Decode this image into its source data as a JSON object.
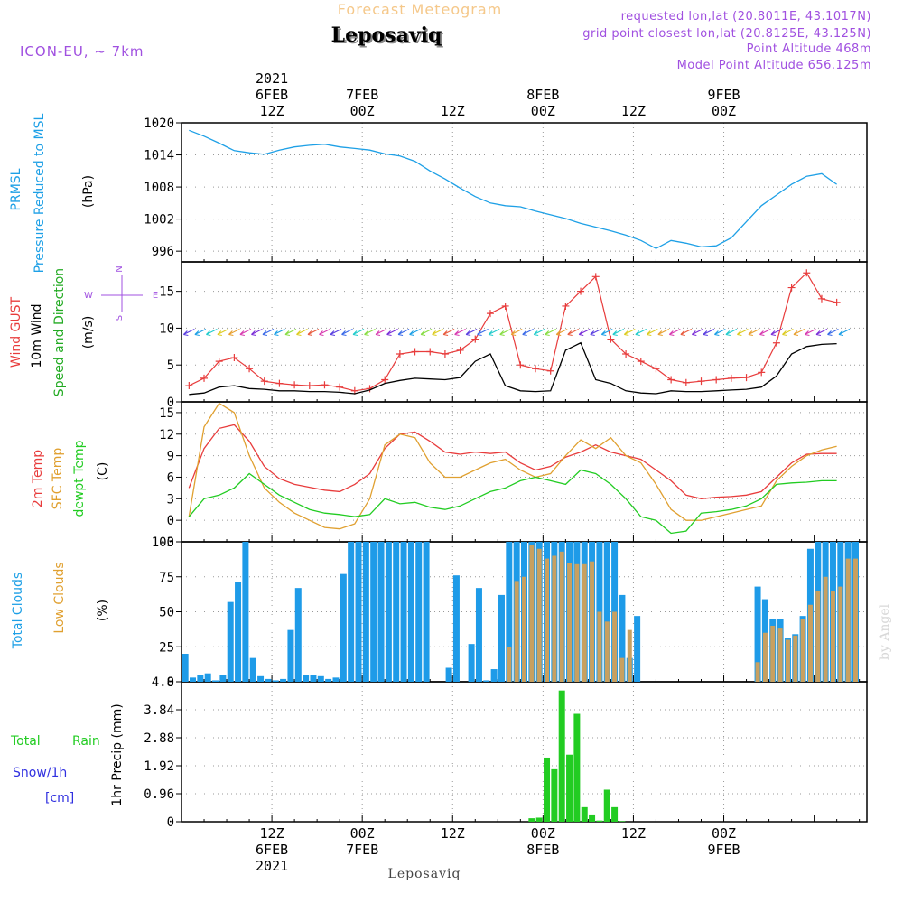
{
  "header": {
    "super_title": "Forecast Meteogram",
    "location": "Leposaviq",
    "model": "ICON-EU, ~ 7km",
    "requested": "requested lon,lat (20.8011E, 43.1017N)",
    "grid_point": "grid point closest lon,lat (20.8125E, 43.125N)",
    "point_altitude": "Point Altitude 468m",
    "model_altitude": "Model Point Altitude 656.125m"
  },
  "time_axis": {
    "top_labels": [
      {
        "t": 12,
        "lines": [
          "2021",
          "6FEB",
          "12Z"
        ]
      },
      {
        "t": 24,
        "lines": [
          "7FEB",
          "00Z"
        ]
      },
      {
        "t": 36,
        "lines": [
          "12Z"
        ]
      },
      {
        "t": 48,
        "lines": [
          "8FEB",
          "00Z"
        ]
      },
      {
        "t": 60,
        "lines": [
          "12Z"
        ]
      },
      {
        "t": 72,
        "lines": [
          "9FEB",
          "00Z"
        ]
      }
    ],
    "bottom_labels": [
      {
        "t": 12,
        "lines": [
          "12Z",
          "6FEB",
          "2021"
        ]
      },
      {
        "t": 24,
        "lines": [
          "00Z",
          "7FEB"
        ]
      },
      {
        "t": 36,
        "lines": [
          "12Z"
        ]
      },
      {
        "t": 48,
        "lines": [
          "00Z",
          "8FEB"
        ]
      },
      {
        "t": 60,
        "lines": [
          "12Z"
        ]
      },
      {
        "t": 72,
        "lines": [
          "00Z",
          "9FEB"
        ]
      }
    ],
    "footer": "Leposaviq",
    "credit": "by Angel"
  },
  "panel_labels": {
    "pressure": {
      "l1": "PRMSL",
      "l2": "Pressure Reduced to MSL",
      "unit": "(hPa)"
    },
    "wind": {
      "l1": "Wind GUST",
      "l2": "10m Wind",
      "l3": "Speed and Direction",
      "unit": "(m/s)",
      "compass_n": "N",
      "compass_s": "S",
      "compass_e": "E",
      "compass_w": "W"
    },
    "temp": {
      "l1": "2m Temp",
      "l2": "SFC Temp",
      "l3": "dewpt Temp",
      "unit": "(C)"
    },
    "clouds": {
      "l1": "Total Clouds",
      "l2": "Low Clouds",
      "unit": "(%)"
    },
    "precip": {
      "l1": "Total",
      "l1b": "Rain",
      "l2": "Snow/1h",
      "l3": "[cm]",
      "unit": "1hr Precip (mm)"
    }
  },
  "colors": {
    "pressure": "#1ea0e6",
    "gust": "#e83c3c",
    "wind": "#000000",
    "t2m": "#e83c3c",
    "sfc": "#e0a030",
    "dew": "#22cc22",
    "total_clouds": "#1e9be8",
    "low_clouds": "#c8a060",
    "rain": "#22cc22",
    "snow": "#3030e0",
    "purple": "#a050e0"
  },
  "chart_data": [
    {
      "type": "line",
      "title": "PRMSL Pressure Reduced to MSL",
      "ylabel": "(hPa)",
      "ylim": [
        994,
        1020
      ],
      "yticks": [
        996,
        1002,
        1008,
        1014,
        1020
      ],
      "x": [
        1,
        3,
        5,
        7,
        9,
        11,
        13,
        15,
        17,
        19,
        21,
        23,
        25,
        27,
        29,
        31,
        33,
        35,
        37,
        39,
        41,
        43,
        45,
        47,
        49,
        51,
        53,
        55,
        57,
        59,
        61,
        63,
        65,
        67,
        69,
        71,
        73,
        75,
        77,
        79,
        81,
        83,
        85,
        87
      ],
      "series": [
        {
          "values": [
            1018.6,
            1017.5,
            1016.2,
            1014.8,
            1014.4,
            1014.1,
            1014.9,
            1015.5,
            1015.8,
            1016.0,
            1015.5,
            1015.2,
            1014.9,
            1014.2,
            1013.8,
            1012.8,
            1011.0,
            1009.5,
            1007.8,
            1006.2,
            1005.0,
            1004.5,
            1004.3,
            1003.5,
            1002.8,
            1002.1,
            1001.2,
            1000.5,
            999.8,
            999.0,
            998.0,
            996.5,
            998.0,
            997.5,
            996.8,
            997.0,
            998.5,
            1001.5,
            1004.5,
            1006.5,
            1008.5,
            1010.0,
            1010.5,
            1008.5
          ]
        }
      ]
    },
    {
      "type": "line",
      "title": "Wind GUST / 10m Wind Speed and Direction",
      "ylabel": "(m/s)",
      "ylim": [
        0,
        19
      ],
      "yticks": [
        0,
        5,
        10,
        15
      ],
      "x": [
        1,
        3,
        5,
        7,
        9,
        11,
        13,
        15,
        17,
        19,
        21,
        23,
        25,
        27,
        29,
        31,
        33,
        35,
        37,
        39,
        41,
        43,
        45,
        47,
        49,
        51,
        53,
        55,
        57,
        59,
        61,
        63,
        65,
        67,
        69,
        71,
        73,
        75,
        77,
        79,
        81,
        83,
        85,
        87
      ],
      "series": [
        {
          "name": "Wind GUST",
          "values": [
            2.2,
            3.2,
            5.5,
            6.0,
            4.5,
            2.8,
            2.5,
            2.3,
            2.2,
            2.3,
            2.0,
            1.5,
            1.8,
            3.0,
            6.5,
            6.8,
            6.8,
            6.5,
            7.0,
            8.5,
            12.0,
            13.0,
            5.0,
            4.5,
            4.2,
            13.0,
            15.0,
            17.0,
            8.5,
            6.5,
            5.5,
            4.5,
            3.0,
            2.6,
            2.8,
            3.0,
            3.2,
            3.3,
            4.0,
            8.0,
            15.5,
            17.5,
            14.0,
            13.5
          ]
        },
        {
          "name": "10m Wind",
          "values": [
            1.0,
            1.2,
            2.0,
            2.2,
            1.8,
            1.7,
            1.5,
            1.5,
            1.4,
            1.4,
            1.3,
            1.1,
            1.6,
            2.5,
            2.9,
            3.2,
            3.1,
            3.0,
            3.3,
            5.5,
            6.5,
            2.2,
            1.5,
            1.4,
            1.5,
            7.0,
            8.0,
            3.0,
            2.5,
            1.5,
            1.2,
            1.1,
            1.5,
            1.4,
            1.4,
            1.5,
            1.6,
            1.7,
            2.0,
            3.5,
            6.5,
            7.5,
            7.8,
            7.9
          ]
        }
      ]
    },
    {
      "type": "line",
      "title": "2m Temp / SFC Temp / dewpt Temp",
      "ylabel": "(C)",
      "ylim": [
        -3,
        16.5
      ],
      "yticks": [
        -3,
        0,
        3,
        6,
        9,
        12,
        15
      ],
      "x": [
        1,
        3,
        5,
        7,
        9,
        11,
        13,
        15,
        17,
        19,
        21,
        23,
        25,
        27,
        29,
        31,
        33,
        35,
        37,
        39,
        41,
        43,
        45,
        47,
        49,
        51,
        53,
        55,
        57,
        59,
        61,
        63,
        65,
        67,
        69,
        71,
        73,
        75,
        77,
        79,
        81,
        83,
        85,
        87
      ],
      "series": [
        {
          "name": "2m Temp",
          "values": [
            4.5,
            10.0,
            12.8,
            13.3,
            11.0,
            7.5,
            5.8,
            5.0,
            4.6,
            4.2,
            4.0,
            5.0,
            6.5,
            10.0,
            12.0,
            12.3,
            11.0,
            9.5,
            9.2,
            9.5,
            9.3,
            9.5,
            8.0,
            7.0,
            7.5,
            8.8,
            9.5,
            10.5,
            9.5,
            9.0,
            8.5,
            7.0,
            5.5,
            3.5,
            3.0,
            3.2,
            3.3,
            3.5,
            4.0,
            6.0,
            8.0,
            9.2,
            9.3,
            9.3
          ]
        },
        {
          "name": "SFC Temp",
          "values": [
            0.5,
            13.0,
            16.3,
            15.0,
            9.0,
            4.5,
            2.5,
            1.0,
            0.0,
            -1.0,
            -1.2,
            -0.5,
            3.0,
            10.5,
            12.0,
            11.5,
            8.0,
            6.0,
            6.0,
            7.0,
            8.0,
            8.5,
            7.0,
            6.0,
            6.5,
            9.0,
            11.2,
            10.0,
            11.5,
            9.0,
            8.0,
            5.0,
            1.5,
            0.0,
            0.0,
            0.5,
            1.0,
            1.5,
            2.0,
            5.5,
            7.5,
            9.0,
            9.8,
            10.3
          ]
        },
        {
          "name": "dewpt Temp",
          "values": [
            0.5,
            3.0,
            3.5,
            4.5,
            6.5,
            5.0,
            3.5,
            2.5,
            1.5,
            1.0,
            0.8,
            0.5,
            0.8,
            3.0,
            2.3,
            2.5,
            1.8,
            1.5,
            2.0,
            3.0,
            4.0,
            4.5,
            5.5,
            6.0,
            5.5,
            5.0,
            7.0,
            6.5,
            5.0,
            3.0,
            0.5,
            0.0,
            -1.8,
            -1.5,
            1.0,
            1.2,
            1.5,
            2.0,
            3.0,
            5.0,
            5.2,
            5.3,
            5.5,
            5.5
          ]
        }
      ]
    },
    {
      "type": "bar",
      "title": "Total Clouds / Low Clouds",
      "ylabel": "(%)",
      "ylim": [
        0,
        100
      ],
      "yticks": [
        0,
        25,
        50,
        75,
        100
      ],
      "x": [
        0,
        1,
        2,
        3,
        4,
        5,
        6,
        7,
        8,
        9,
        10,
        11,
        12,
        13,
        14,
        15,
        16,
        17,
        18,
        19,
        20,
        21,
        22,
        23,
        24,
        25,
        26,
        27,
        28,
        29,
        30,
        31,
        32,
        33,
        34,
        35,
        36,
        37,
        38,
        39,
        40,
        41,
        42,
        43,
        44,
        45,
        46,
        47,
        48,
        49,
        50,
        51,
        52,
        53,
        54,
        55,
        56,
        57,
        58,
        59,
        60,
        61,
        62,
        63,
        64,
        65,
        66,
        67,
        68,
        69,
        70,
        71,
        72,
        73,
        74,
        75,
        76,
        77,
        78,
        79,
        80,
        81,
        82,
        83,
        84,
        85,
        86,
        87,
        88,
        89,
        90
      ],
      "series": [
        {
          "name": "Total Clouds",
          "values": [
            20,
            3,
            5,
            6,
            1,
            5,
            57,
            71,
            100,
            17,
            4,
            2,
            1,
            2,
            37,
            67,
            5,
            5,
            4,
            2,
            3,
            77,
            100,
            100,
            100,
            100,
            100,
            100,
            100,
            100,
            100,
            100,
            100,
            0,
            0,
            10,
            76,
            0,
            27,
            67,
            1,
            9,
            62,
            100,
            100,
            100,
            100,
            100,
            100,
            100,
            100,
            100,
            100,
            100,
            100,
            100,
            100,
            100,
            62,
            17,
            47,
            0,
            0,
            0,
            0,
            0,
            0,
            0,
            0,
            0,
            0,
            0,
            0,
            0,
            0,
            0,
            68,
            59,
            45,
            45,
            31,
            34,
            47,
            95,
            100,
            100,
            100,
            100,
            100,
            100,
            0
          ]
        },
        {
          "name": "Low Clouds",
          "values": [
            0,
            0,
            0,
            0,
            0,
            0,
            0,
            0,
            0,
            0,
            0,
            0,
            0,
            0,
            0,
            0,
            0,
            0,
            0,
            0,
            0,
            0,
            0,
            0,
            0,
            0,
            0,
            0,
            0,
            0,
            0,
            0,
            0,
            0,
            0,
            0,
            0,
            0,
            0,
            0,
            0,
            0,
            0,
            25,
            72,
            75,
            98,
            95,
            88,
            90,
            93,
            85,
            84,
            84,
            86,
            50,
            43,
            50,
            17,
            37,
            0,
            0,
            0,
            0,
            0,
            0,
            0,
            0,
            0,
            0,
            0,
            0,
            0,
            0,
            0,
            0,
            14,
            35,
            40,
            38,
            30,
            33,
            45,
            55,
            65,
            75,
            65,
            68,
            88,
            88,
            0
          ]
        }
      ]
    },
    {
      "type": "bar",
      "title": "1hr Precip (mm)",
      "ylabel": "1hr Precip (mm)",
      "ylim": [
        0,
        4.8
      ],
      "yticks": [
        0,
        0.96,
        1.92,
        2.88,
        3.84,
        4.8
      ],
      "x": [
        46,
        47,
        48,
        49,
        50,
        51,
        52,
        53,
        54,
        55,
        56,
        57,
        58,
        59,
        60,
        61,
        62,
        63,
        64
      ],
      "series": [
        {
          "name": "Total Rain",
          "values": [
            0.12,
            0.14,
            2.2,
            1.8,
            4.5,
            2.3,
            3.7,
            0.5,
            0.25,
            0.04,
            1.1,
            0.5,
            0.02,
            0,
            0,
            0,
            0,
            0,
            0
          ]
        }
      ]
    }
  ]
}
